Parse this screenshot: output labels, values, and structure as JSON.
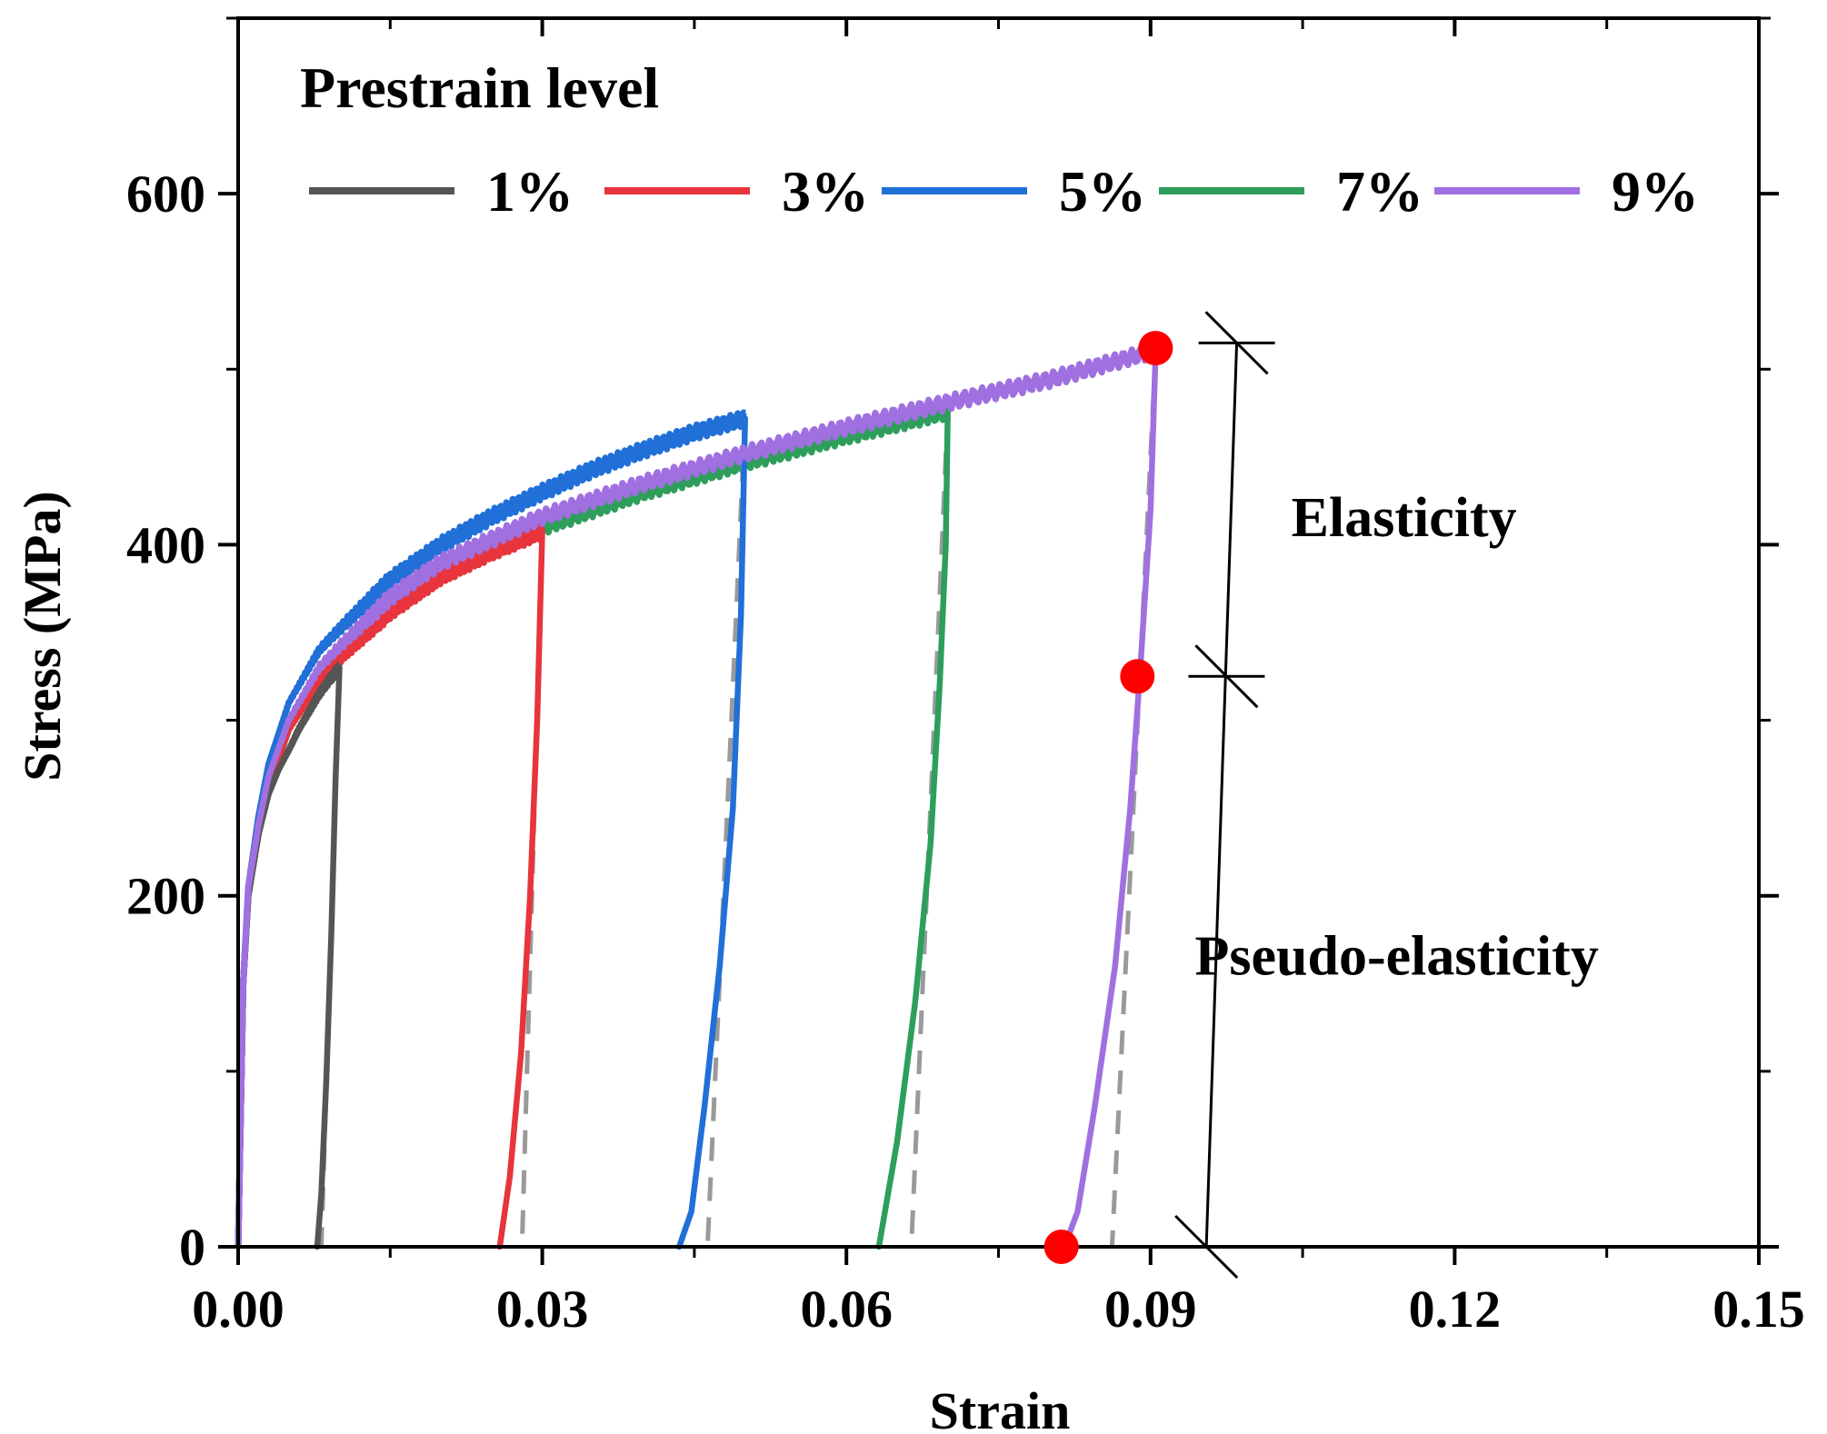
{
  "chart_data": {
    "type": "line",
    "xlabel": "Strain",
    "ylabel": "Stress (MPa)",
    "xlim": [
      0,
      0.15
    ],
    "ylim": [
      0,
      700
    ],
    "xticks": [
      0.0,
      0.03,
      0.06,
      0.09,
      0.12,
      0.15
    ],
    "xtick_labels": [
      "0.00",
      "0.03",
      "0.06",
      "0.09",
      "0.12",
      "0.15"
    ],
    "yticks": [
      0,
      200,
      400,
      600
    ],
    "ytick_labels": [
      "0",
      "200",
      "400",
      "600"
    ],
    "legend": {
      "title": "Prestrain level",
      "placement": "top",
      "entries": [
        "1%",
        "3%",
        "5%",
        "7%",
        "9%"
      ]
    },
    "series": [
      {
        "name": "1%",
        "color": "#555555",
        "loading": [
          [
            0,
            0
          ],
          [
            0.0005,
            150
          ],
          [
            0.001,
            200
          ],
          [
            0.002,
            235
          ],
          [
            0.003,
            258
          ],
          [
            0.004,
            272
          ],
          [
            0.005,
            283
          ],
          [
            0.006,
            295
          ],
          [
            0.007,
            305
          ],
          [
            0.008,
            315
          ],
          [
            0.009,
            323
          ],
          [
            0.01,
            330
          ]
        ],
        "unloading": [
          [
            0.01,
            330
          ],
          [
            0.0096,
            265
          ],
          [
            0.0092,
            180
          ],
          [
            0.0087,
            95
          ],
          [
            0.0082,
            30
          ],
          [
            0.0078,
            0
          ]
        ],
        "elastic_line": [
          [
            0.01,
            330
          ],
          [
            0.0082,
            0
          ]
        ]
      },
      {
        "name": "3%",
        "color": "#e8343c",
        "loading": [
          [
            0,
            0
          ],
          [
            0.0005,
            150
          ],
          [
            0.001,
            200
          ],
          [
            0.002,
            235
          ],
          [
            0.003,
            262
          ],
          [
            0.005,
            295
          ],
          [
            0.008,
            322
          ],
          [
            0.01,
            335
          ],
          [
            0.015,
            362
          ],
          [
            0.02,
            382
          ],
          [
            0.025,
            396
          ],
          [
            0.03,
            408
          ]
        ],
        "unloading": [
          [
            0.03,
            408
          ],
          [
            0.0295,
            300
          ],
          [
            0.0288,
            200
          ],
          [
            0.0279,
            110
          ],
          [
            0.0268,
            40
          ],
          [
            0.0258,
            0
          ]
        ],
        "elastic_line": [
          [
            0.03,
            408
          ],
          [
            0.028,
            0
          ]
        ]
      },
      {
        "name": "5%",
        "color": "#2070d8",
        "loading": [
          [
            0,
            0
          ],
          [
            0.0005,
            150
          ],
          [
            0.001,
            205
          ],
          [
            0.002,
            245
          ],
          [
            0.003,
            275
          ],
          [
            0.005,
            310
          ],
          [
            0.008,
            340
          ],
          [
            0.01,
            352
          ],
          [
            0.015,
            380
          ],
          [
            0.02,
            400
          ],
          [
            0.025,
            416
          ],
          [
            0.03,
            430
          ],
          [
            0.035,
            443
          ],
          [
            0.04,
            454
          ],
          [
            0.045,
            464
          ],
          [
            0.05,
            472
          ]
        ],
        "unloading": [
          [
            0.05,
            472
          ],
          [
            0.0496,
            360
          ],
          [
            0.0488,
            250
          ],
          [
            0.0475,
            160
          ],
          [
            0.046,
            80
          ],
          [
            0.0447,
            20
          ],
          [
            0.0435,
            0
          ]
        ],
        "elastic_line": [
          [
            0.05,
            472
          ],
          [
            0.0463,
            0
          ]
        ]
      },
      {
        "name": "7%",
        "color": "#2e9e5b",
        "loading": [
          [
            0,
            0
          ],
          [
            0.0005,
            150
          ],
          [
            0.001,
            200
          ],
          [
            0.002,
            235
          ],
          [
            0.003,
            260
          ],
          [
            0.005,
            295
          ],
          [
            0.008,
            325
          ],
          [
            0.01,
            338
          ],
          [
            0.015,
            366
          ],
          [
            0.02,
            385
          ],
          [
            0.03,
            410
          ],
          [
            0.04,
            430
          ],
          [
            0.05,
            447
          ],
          [
            0.06,
            462
          ],
          [
            0.07,
            476
          ]
        ],
        "unloading": [
          [
            0.07,
            476
          ],
          [
            0.0698,
            400
          ],
          [
            0.0692,
            320
          ],
          [
            0.0683,
            230
          ],
          [
            0.0668,
            140
          ],
          [
            0.065,
            60
          ],
          [
            0.0632,
            0
          ]
        ],
        "elastic_line": [
          [
            0.07,
            476
          ],
          [
            0.0664,
            0
          ]
        ]
      },
      {
        "name": "9%",
        "color": "#a070e0",
        "loading": [
          [
            0,
            0
          ],
          [
            0.0005,
            150
          ],
          [
            0.001,
            205
          ],
          [
            0.002,
            240
          ],
          [
            0.003,
            268
          ],
          [
            0.005,
            300
          ],
          [
            0.008,
            330
          ],
          [
            0.01,
            342
          ],
          [
            0.015,
            370
          ],
          [
            0.02,
            390
          ],
          [
            0.03,
            416
          ],
          [
            0.04,
            435
          ],
          [
            0.05,
            452
          ],
          [
            0.06,
            467
          ],
          [
            0.07,
            481
          ],
          [
            0.08,
            494
          ],
          [
            0.09,
            510
          ]
        ],
        "unloading": [
          [
            0.0905,
            510
          ],
          [
            0.09,
            420
          ],
          [
            0.089,
            330
          ],
          [
            0.088,
            250
          ],
          [
            0.0865,
            160
          ],
          [
            0.0845,
            80
          ],
          [
            0.0828,
            20
          ],
          [
            0.0815,
            0
          ]
        ],
        "elastic_line": [
          [
            0.0905,
            510
          ],
          [
            0.0862,
            0
          ]
        ]
      }
    ],
    "markers": [
      {
        "x": 0.0905,
        "y": 512,
        "color": "#ff0000"
      },
      {
        "x": 0.0887,
        "y": 325,
        "color": "#ff0000"
      },
      {
        "x": 0.0812,
        "y": 0,
        "color": "#ff0000"
      }
    ],
    "annotations": [
      {
        "text": "Elasticity",
        "x": 0.115,
        "y": 405
      },
      {
        "text": "Pseudo-elasticity",
        "x": 0.115,
        "y": 155
      }
    ],
    "bracket": {
      "line": [
        [
          0.0985,
          515
        ],
        [
          0.0955,
          0
        ]
      ],
      "ticks": [
        [
          0.0985,
          515
        ],
        [
          0.0975,
          325
        ],
        [
          0.0955,
          0
        ]
      ]
    }
  }
}
